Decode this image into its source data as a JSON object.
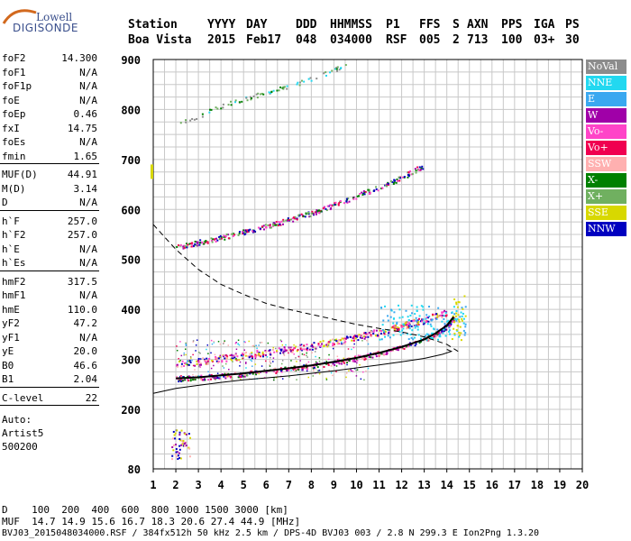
{
  "logo": {
    "line1": "Lowell",
    "line2": "DIGISONDE"
  },
  "header": {
    "labels": [
      "Station",
      "YYYY",
      "DAY",
      "DDD",
      "HHMMSS",
      "P1",
      "FFS",
      "S",
      "AXN",
      "PPS",
      "IGA",
      "PS"
    ],
    "values": [
      "Boa Vista",
      "2015",
      "Feb17",
      "048",
      "034000",
      "RSF",
      "005",
      "2",
      "713",
      "100",
      "03+",
      "30"
    ]
  },
  "params_group1": [
    {
      "name": "foF2",
      "value": "14.300"
    },
    {
      "name": "foF1",
      "value": "N/A"
    },
    {
      "name": "foF1p",
      "value": "N/A"
    },
    {
      "name": "foE",
      "value": "N/A"
    },
    {
      "name": "foEp",
      "value": "0.46"
    },
    {
      "name": "fxI",
      "value": "14.75"
    },
    {
      "name": "foEs",
      "value": "N/A"
    },
    {
      "name": "fmin",
      "value": "1.65"
    }
  ],
  "params_group2": [
    {
      "name": "MUF(D)",
      "value": "44.91"
    },
    {
      "name": "M(D)",
      "value": "3.14"
    },
    {
      "name": "D",
      "value": "N/A"
    }
  ],
  "params_group3": [
    {
      "name": "h`F",
      "value": "257.0"
    },
    {
      "name": "h`F2",
      "value": "257.0"
    },
    {
      "name": "h`E",
      "value": "N/A"
    },
    {
      "name": "h`Es",
      "value": "N/A"
    }
  ],
  "params_group4": [
    {
      "name": "hmF2",
      "value": "317.5"
    },
    {
      "name": "hmF1",
      "value": "N/A"
    },
    {
      "name": "hmE",
      "value": "110.0"
    },
    {
      "name": "yF2",
      "value": "47.2"
    },
    {
      "name": "yF1",
      "value": "N/A"
    },
    {
      "name": "yE",
      "value": "20.0"
    },
    {
      "name": "B0",
      "value": "46.6"
    },
    {
      "name": "B1",
      "value": "2.04"
    }
  ],
  "params_group5": [
    {
      "name": "C-level",
      "value": "22"
    }
  ],
  "auto": {
    "line1": "Auto:",
    "line2": "Artist5",
    "line3": "500200"
  },
  "legend": [
    {
      "label": "NoVal",
      "color": "#8c8c8c"
    },
    {
      "label": "NNE",
      "color": "#22d8f0"
    },
    {
      "label": "E",
      "color": "#3aa8f0"
    },
    {
      "label": "W",
      "color": "#a000a8"
    },
    {
      "label": "Vo-",
      "color": "#ff44c8"
    },
    {
      "label": "Vo+",
      "color": "#f00050"
    },
    {
      "label": "SSW",
      "color": "#ffb0b0"
    },
    {
      "label": "X-",
      "color": "#008000"
    },
    {
      "label": "X+",
      "color": "#70b060"
    },
    {
      "label": "SSE",
      "color": "#d8d800"
    },
    {
      "label": "NNW",
      "color": "#0000c0"
    }
  ],
  "bottom": {
    "d_line": "D    100  200  400  600  800 1000 1500 3000 [km]",
    "muf_line": "MUF  14.7 14.9 15.6 16.7 18.3 20.6 27.4 44.9 [MHz]",
    "file_line": "BVJ03_2015048034000.RSF / 384fx512h 50 kHz 2.5 km / DPS-4D BVJ03 003 / 2.8 N 299.3 E Ion2Png 1.3.20"
  },
  "chart_data": {
    "type": "scatter",
    "x_ticks": [
      "1",
      "2",
      "3",
      "4",
      "5",
      "6",
      "7",
      "8",
      "9",
      "10",
      "11",
      "12",
      "13",
      "14",
      "15",
      "16",
      "17",
      "18",
      "19",
      "20"
    ],
    "y_ticks": [
      "80",
      "200",
      "300",
      "400",
      "500",
      "600",
      "700",
      "800",
      "900"
    ],
    "xlim": [
      1,
      20
    ],
    "ylim": [
      80,
      900
    ],
    "grid": true,
    "legend_position": "right",
    "f2_trace_virtual_height": [
      [
        2.0,
        262
      ],
      [
        3,
        264
      ],
      [
        4,
        268
      ],
      [
        5,
        272
      ],
      [
        6,
        277
      ],
      [
        7,
        282
      ],
      [
        8,
        288
      ],
      [
        9,
        295
      ],
      [
        10,
        303
      ],
      [
        11,
        313
      ],
      [
        12,
        325
      ],
      [
        13,
        340
      ],
      [
        13.5,
        352
      ],
      [
        14,
        368
      ],
      [
        14.3,
        385
      ]
    ],
    "f2_o_trace_upper": [
      [
        2.0,
        290
      ],
      [
        3,
        297
      ],
      [
        4,
        303
      ],
      [
        5,
        309
      ],
      [
        6,
        315
      ],
      [
        7,
        321
      ],
      [
        8,
        328
      ],
      [
        9,
        336
      ],
      [
        10,
        345
      ],
      [
        11,
        356
      ],
      [
        12,
        368
      ],
      [
        13,
        380
      ],
      [
        14,
        395
      ]
    ],
    "f2_second_hop": [
      [
        2.0,
        525
      ],
      [
        3,
        535
      ],
      [
        4,
        545
      ],
      [
        5,
        556
      ],
      [
        6,
        568
      ],
      [
        7,
        580
      ],
      [
        8,
        594
      ],
      [
        9,
        610
      ],
      [
        10,
        628
      ],
      [
        11,
        646
      ],
      [
        12,
        665
      ],
      [
        13,
        690
      ]
    ],
    "true_height_profile": [
      [
        1.0,
        232
      ],
      [
        2,
        242
      ],
      [
        3,
        248
      ],
      [
        4,
        254
      ],
      [
        5,
        259
      ],
      [
        6,
        263
      ],
      [
        7,
        267
      ],
      [
        8,
        272
      ],
      [
        9,
        277
      ],
      [
        10,
        283
      ],
      [
        11,
        289
      ],
      [
        12,
        295
      ],
      [
        13,
        302
      ],
      [
        13.8,
        310
      ],
      [
        14.2,
        316
      ],
      [
        14.0,
        320
      ]
    ],
    "muf_curve_dashed": [
      [
        1.0,
        570
      ],
      [
        1.5,
        545
      ],
      [
        2,
        520
      ],
      [
        3,
        480
      ],
      [
        4,
        450
      ],
      [
        5,
        430
      ],
      [
        6,
        412
      ],
      [
        7,
        400
      ],
      [
        8,
        390
      ],
      [
        9,
        380
      ],
      [
        10,
        370
      ],
      [
        11,
        362
      ],
      [
        12,
        355
      ],
      [
        13,
        345
      ],
      [
        14,
        330
      ],
      [
        14.5,
        316
      ]
    ],
    "upper_faint_trace": [
      [
        2.0,
        770
      ],
      [
        3,
        788
      ],
      [
        4,
        808
      ],
      [
        5,
        822
      ],
      [
        6,
        835
      ],
      [
        7,
        848
      ],
      [
        8,
        862
      ],
      [
        9,
        880
      ],
      [
        9.5,
        890
      ]
    ]
  }
}
